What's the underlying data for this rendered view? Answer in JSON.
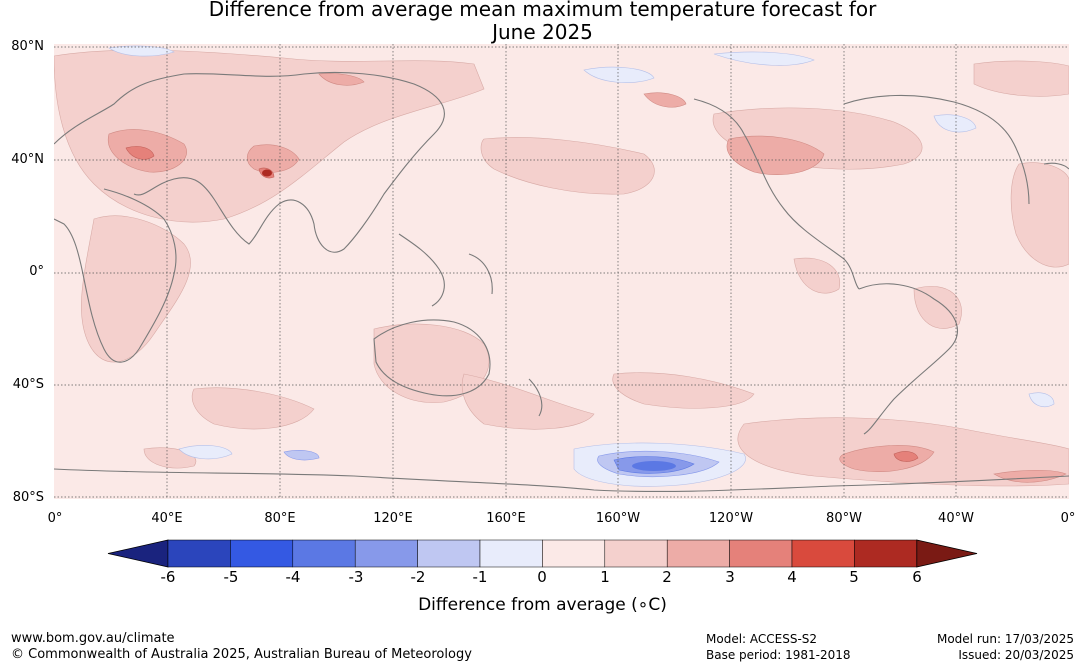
{
  "title_line1": "Difference from average mean maximum temperature forecast for",
  "title_line2": "June 2025",
  "lat_labels": [
    "80°N",
    "40°N",
    "0°",
    "40°S",
    "80°S"
  ],
  "lon_labels": [
    "0°",
    "40°E",
    "80°E",
    "120°E",
    "160°E",
    "160°W",
    "120°W",
    "80°W",
    "40°W",
    "0°"
  ],
  "colorbar": {
    "label": "Difference from average (∘C)",
    "ticks": [
      "-6",
      "-5",
      "-4",
      "-3",
      "-2",
      "-1",
      "0",
      "1",
      "2",
      "3",
      "4",
      "5",
      "6"
    ],
    "colors": [
      "#1a237e",
      "#2b45bc",
      "#3459e3",
      "#5b78e4",
      "#8799ea",
      "#bfc7f2",
      "#e8ecfb",
      "#fbe9e7",
      "#f4d0cd",
      "#edaca7",
      "#e5817a",
      "#d94a3d",
      "#ad2a22",
      "#7a1a14"
    ]
  },
  "footer": {
    "website": "www.bom.gov.au/climate",
    "copyright": "© Commonwealth of Australia 2025, Australian Bureau of Meteorology",
    "model": "Model: ACCESS-S2",
    "base_period": "Base period: 1981-2018",
    "model_run": "Model run: 17/03/2025",
    "issued": "Issued: 20/03/2025"
  }
}
